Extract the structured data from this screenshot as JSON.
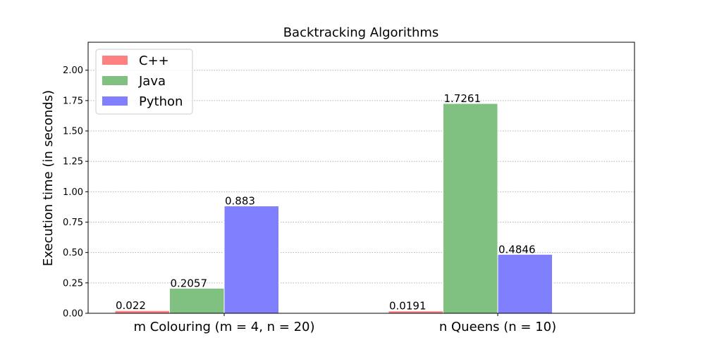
{
  "chart_data": {
    "type": "bar",
    "title": "Backtracking Algorithms",
    "xlabel": "",
    "ylabel": "Execution time (in seconds)",
    "categories": [
      "m Colouring (m = 4, n = 20)",
      "n Queens (n = 10)"
    ],
    "series": [
      {
        "name": "C++",
        "color": "#ff8080",
        "values": [
          0.022,
          0.0191
        ],
        "labels": [
          "0.022",
          "0.0191"
        ]
      },
      {
        "name": "Java",
        "color": "#80c080",
        "values": [
          0.2057,
          1.7261
        ],
        "labels": [
          "0.2057",
          "1.7261"
        ]
      },
      {
        "name": "Python",
        "color": "#8080ff",
        "values": [
          0.883,
          0.4846
        ],
        "labels": [
          "0.883",
          "0.4846"
        ]
      }
    ],
    "ylim": [
      0,
      2.23
    ],
    "yticks": [
      0.0,
      0.25,
      0.5,
      0.75,
      1.0,
      1.25,
      1.5,
      1.75,
      2.0
    ],
    "ytick_labels": [
      "0.00",
      "0.25",
      "0.50",
      "0.75",
      "1.00",
      "1.25",
      "1.50",
      "1.75",
      "2.00"
    ],
    "grid": "y dotted",
    "legend_position": "top-left"
  }
}
